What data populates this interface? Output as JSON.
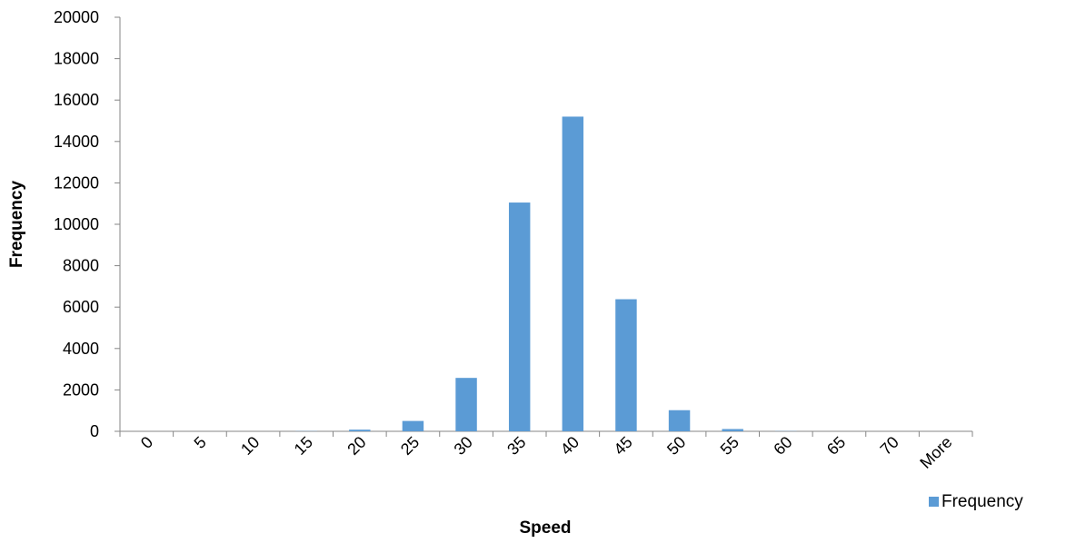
{
  "chart_data": {
    "type": "bar",
    "xlabel": "Speed",
    "ylabel": "Frequency",
    "ylim": [
      0,
      20000
    ],
    "y_ticks": [
      0,
      2000,
      4000,
      6000,
      8000,
      10000,
      12000,
      14000,
      16000,
      18000,
      20000
    ],
    "categories": [
      "0",
      "5",
      "10",
      "15",
      "20",
      "25",
      "30",
      "35",
      "40",
      "45",
      "50",
      "55",
      "60",
      "65",
      "70",
      "More"
    ],
    "series": [
      {
        "name": "Frequency",
        "color": "#5b9bd5",
        "values": [
          0,
          0,
          0,
          10,
          80,
          500,
          2580,
          11050,
          15200,
          6380,
          1020,
          110,
          10,
          0,
          0,
          0
        ]
      }
    ],
    "grid": false,
    "legend_position": "bottom-right"
  }
}
